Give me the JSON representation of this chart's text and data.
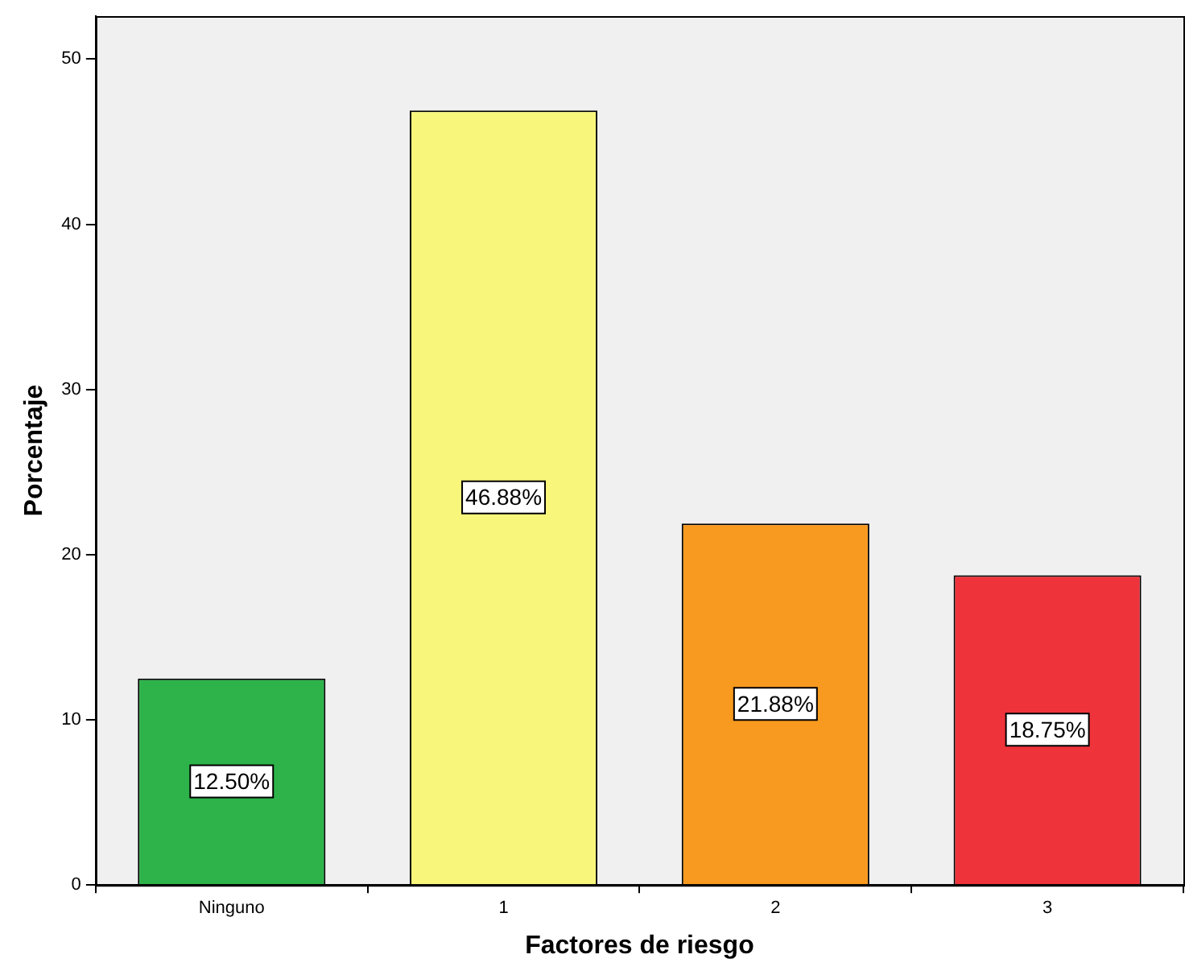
{
  "chart_data": {
    "type": "bar",
    "xlabel": "Factores de riesgo",
    "ylabel": "Porcentaje",
    "categories": [
      "Ninguno",
      "1",
      "2",
      "3"
    ],
    "values": [
      12.5,
      46.88,
      21.88,
      18.75
    ],
    "colors": [
      "#2db34a",
      "#f8f77c",
      "#f89a1f",
      "#ef333b"
    ],
    "value_labels": [
      "12.50%",
      "46.88%",
      "21.88%",
      "18.75%"
    ],
    "ylim": [
      0,
      52.6
    ],
    "yticks": [
      0,
      10,
      20,
      30,
      40,
      50
    ],
    "grid": false,
    "legend": false
  }
}
